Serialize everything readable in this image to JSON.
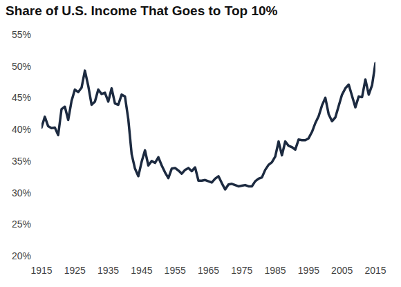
{
  "chart_data": {
    "type": "line",
    "title": "Share of U.S. Income That Goes to Top 10%",
    "color": "#1c2a40",
    "grid": false,
    "x": [
      1915,
      1916,
      1917,
      1918,
      1919,
      1920,
      1921,
      1922,
      1923,
      1924,
      1925,
      1926,
      1927,
      1928,
      1929,
      1930,
      1931,
      1932,
      1933,
      1934,
      1935,
      1936,
      1937,
      1938,
      1939,
      1940,
      1941,
      1942,
      1943,
      1944,
      1945,
      1946,
      1947,
      1948,
      1949,
      1950,
      1951,
      1952,
      1953,
      1954,
      1955,
      1956,
      1957,
      1958,
      1959,
      1960,
      1961,
      1962,
      1963,
      1964,
      1965,
      1966,
      1967,
      1968,
      1969,
      1970,
      1971,
      1972,
      1973,
      1974,
      1975,
      1976,
      1977,
      1978,
      1979,
      1980,
      1981,
      1982,
      1983,
      1984,
      1985,
      1986,
      1987,
      1988,
      1989,
      1990,
      1991,
      1992,
      1993,
      1994,
      1995,
      1996,
      1997,
      1998,
      1999,
      2000,
      2001,
      2002,
      2003,
      2004,
      2005,
      2006,
      2007,
      2008,
      2009,
      2010,
      2011,
      2012,
      2013,
      2014,
      2015
    ],
    "values": [
      40.3,
      42.0,
      40.5,
      40.2,
      40.3,
      39.1,
      43.2,
      43.6,
      41.5,
      44.5,
      46.3,
      45.9,
      46.6,
      49.3,
      46.9,
      43.9,
      44.4,
      46.3,
      45.6,
      45.8,
      44.4,
      46.5,
      44.1,
      43.9,
      45.5,
      45.2,
      41.6,
      36.1,
      33.8,
      32.6,
      34.9,
      36.7,
      34.3,
      35.0,
      34.7,
      35.6,
      34.3,
      33.2,
      32.3,
      33.8,
      33.9,
      33.5,
      33.0,
      33.6,
      33.9,
      33.4,
      34.0,
      31.9,
      31.9,
      32.0,
      31.8,
      31.6,
      32.2,
      32.6,
      31.5,
      30.5,
      31.3,
      31.4,
      31.2,
      31.0,
      31.1,
      31.2,
      31.0,
      31.0,
      31.8,
      32.2,
      32.4,
      33.6,
      34.4,
      34.8,
      35.7,
      38.1,
      35.9,
      38.1,
      37.4,
      37.2,
      36.8,
      38.4,
      38.3,
      38.3,
      38.6,
      39.6,
      41.0,
      42.1,
      43.8,
      45.0,
      42.4,
      41.3,
      41.9,
      43.7,
      45.5,
      46.5,
      47.1,
      45.3,
      43.5,
      45.2,
      45.1,
      47.9,
      45.5,
      47.0,
      50.5
    ],
    "xlim": [
      1915,
      2015
    ],
    "xticks": [
      1915,
      1925,
      1935,
      1945,
      1955,
      1965,
      1975,
      1985,
      1995,
      2005,
      2015
    ],
    "ylim": [
      20,
      55
    ],
    "yticks": [
      {
        "value": 20,
        "label": "20%"
      },
      {
        "value": 25,
        "label": "25%"
      },
      {
        "value": 30,
        "label": "30%"
      },
      {
        "value": 35,
        "label": "35%"
      },
      {
        "value": 40,
        "label": "40%"
      },
      {
        "value": 45,
        "label": "45%"
      },
      {
        "value": 50,
        "label": "50%"
      },
      {
        "value": 55,
        "label": "55%"
      }
    ]
  }
}
